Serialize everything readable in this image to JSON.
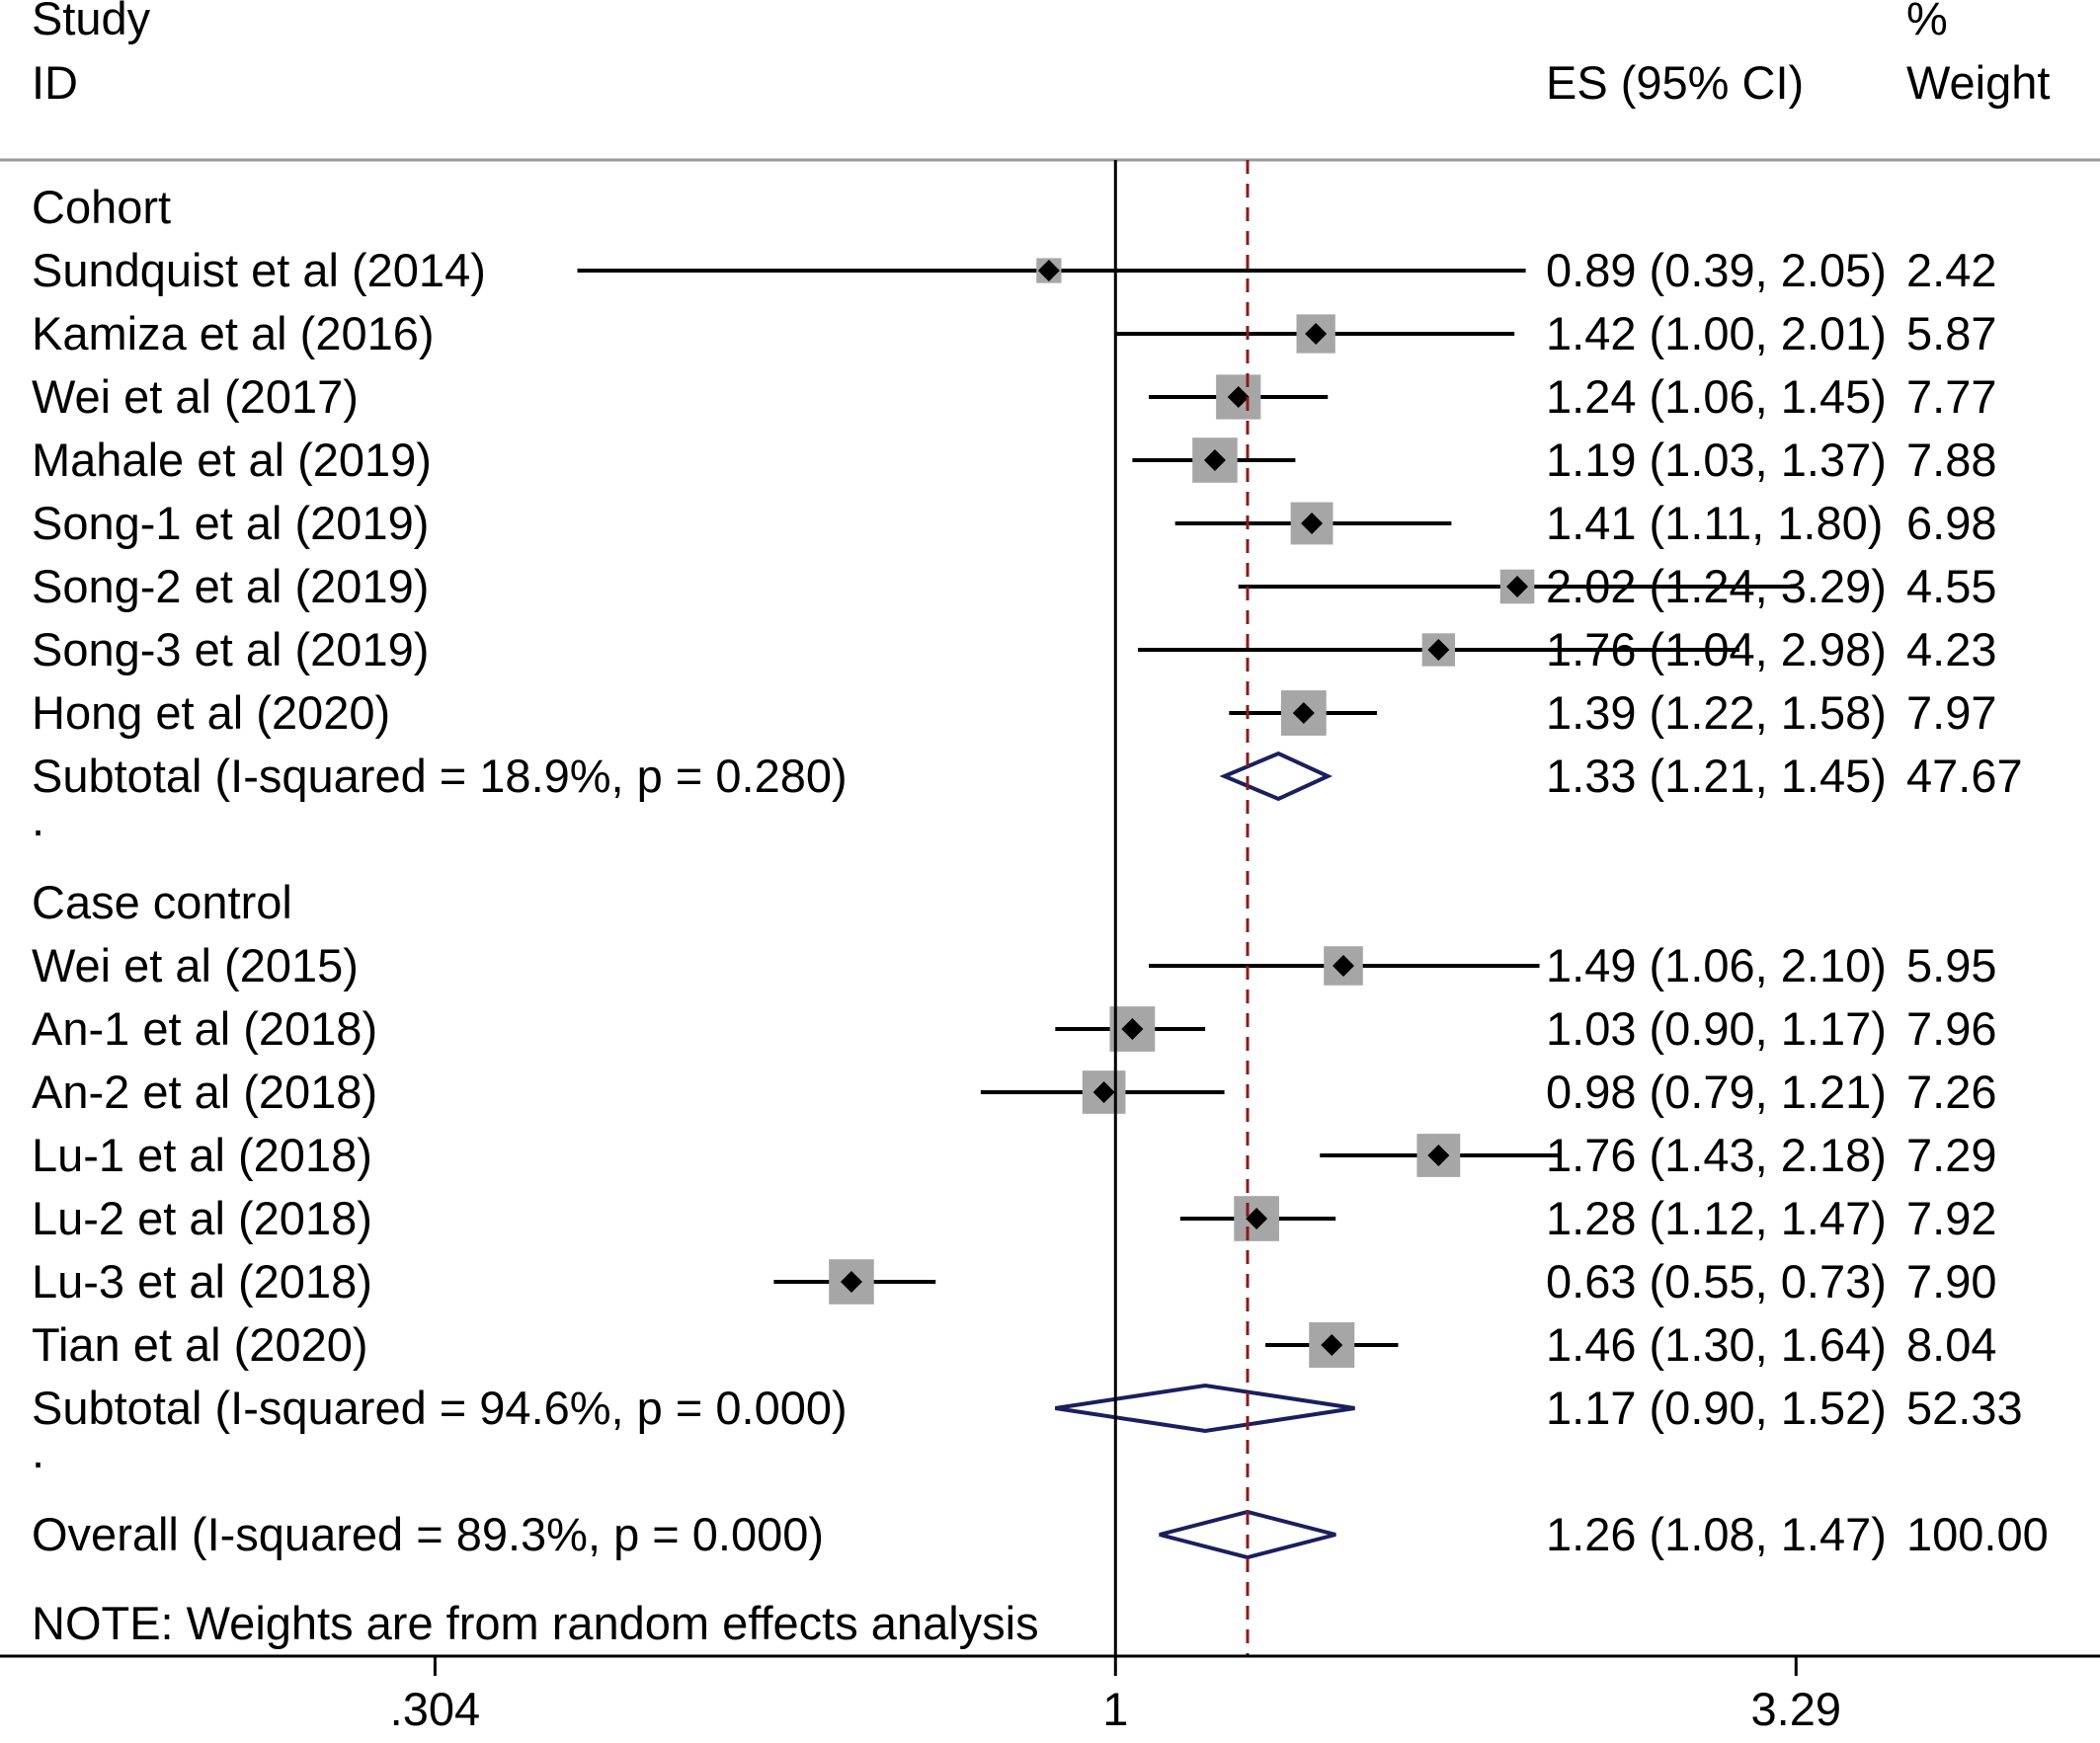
{
  "chart_data": {
    "type": "forest",
    "scale": "log",
    "header": {
      "study_line1": "Study",
      "study_line2": "ID",
      "es_label": "ES (95% CI)",
      "weight_line1": "%",
      "weight_line2": "Weight"
    },
    "null_value": 1,
    "overall_es": 1.26,
    "x_ticks": [
      {
        "value": 0.304,
        "label": ".304"
      },
      {
        "value": 1,
        "label": "1"
      },
      {
        "value": 3.29,
        "label": "3.29"
      }
    ],
    "xlim": [
      0.142,
      5.6
    ],
    "rows": [
      {
        "kind": "group",
        "label": "Cohort"
      },
      {
        "kind": "study",
        "label": "Sundquist et al (2014)",
        "es": 0.89,
        "lo": 0.39,
        "hi": 2.05,
        "weight": 2.42,
        "text": "0.89 (0.39, 2.05)",
        "weight_text": "2.42"
      },
      {
        "kind": "study",
        "label": "Kamiza et al (2016)",
        "es": 1.42,
        "lo": 1.0,
        "hi": 2.01,
        "weight": 5.87,
        "text": "1.42 (1.00, 2.01)",
        "weight_text": "5.87"
      },
      {
        "kind": "study",
        "label": "Wei et al (2017)",
        "es": 1.24,
        "lo": 1.06,
        "hi": 1.45,
        "weight": 7.77,
        "text": "1.24 (1.06, 1.45)",
        "weight_text": "7.77"
      },
      {
        "kind": "study",
        "label": "Mahale et al (2019)",
        "es": 1.19,
        "lo": 1.03,
        "hi": 1.37,
        "weight": 7.88,
        "text": "1.19 (1.03, 1.37)",
        "weight_text": "7.88"
      },
      {
        "kind": "study",
        "label": "Song-1 et al (2019)",
        "es": 1.41,
        "lo": 1.11,
        "hi": 1.8,
        "weight": 6.98,
        "text": "1.41 (1.11, 1.80)",
        "weight_text": "6.98"
      },
      {
        "kind": "study",
        "label": "Song-2 et al (2019)",
        "es": 2.02,
        "lo": 1.24,
        "hi": 3.29,
        "weight": 4.55,
        "text": "2.02 (1.24, 3.29)",
        "weight_text": "4.55"
      },
      {
        "kind": "study",
        "label": "Song-3 et al (2019)",
        "es": 1.76,
        "lo": 1.04,
        "hi": 2.98,
        "weight": 4.23,
        "text": "1.76 (1.04, 2.98)",
        "weight_text": "4.23"
      },
      {
        "kind": "study",
        "label": "Hong et al (2020)",
        "es": 1.39,
        "lo": 1.22,
        "hi": 1.58,
        "weight": 7.97,
        "text": "1.39 (1.22, 1.58)",
        "weight_text": "7.97"
      },
      {
        "kind": "subtotal",
        "label": "Subtotal  (I-squared = 18.9%, p = 0.280)",
        "es": 1.33,
        "lo": 1.21,
        "hi": 1.45,
        "text": "1.33 (1.21, 1.45)",
        "weight_text": "47.67"
      },
      {
        "kind": "spacer",
        "label": "."
      },
      {
        "kind": "group",
        "label": "Case control"
      },
      {
        "kind": "study",
        "label": "Wei et al (2015)",
        "es": 1.49,
        "lo": 1.06,
        "hi": 2.1,
        "weight": 5.95,
        "text": "1.49 (1.06, 2.10)",
        "weight_text": "5.95"
      },
      {
        "kind": "study",
        "label": "An-1 et al (2018)",
        "es": 1.03,
        "lo": 0.9,
        "hi": 1.17,
        "weight": 7.96,
        "text": "1.03 (0.90, 1.17)",
        "weight_text": "7.96"
      },
      {
        "kind": "study",
        "label": "An-2 et al (2018)",
        "es": 0.98,
        "lo": 0.79,
        "hi": 1.21,
        "weight": 7.26,
        "text": "0.98 (0.79, 1.21)",
        "weight_text": "7.26"
      },
      {
        "kind": "study",
        "label": "Lu-1 et al (2018)",
        "es": 1.76,
        "lo": 1.43,
        "hi": 2.18,
        "weight": 7.29,
        "text": "1.76 (1.43, 2.18)",
        "weight_text": "7.29"
      },
      {
        "kind": "study",
        "label": "Lu-2 et al (2018)",
        "es": 1.28,
        "lo": 1.12,
        "hi": 1.47,
        "weight": 7.92,
        "text": "1.28 (1.12, 1.47)",
        "weight_text": "7.92"
      },
      {
        "kind": "study",
        "label": "Lu-3 et al (2018)",
        "es": 0.63,
        "lo": 0.55,
        "hi": 0.73,
        "weight": 7.9,
        "text": "0.63 (0.55, 0.73)",
        "weight_text": "7.90"
      },
      {
        "kind": "study",
        "label": "Tian et al (2020)",
        "es": 1.46,
        "lo": 1.3,
        "hi": 1.64,
        "weight": 8.04,
        "text": "1.46 (1.30, 1.64)",
        "weight_text": "8.04"
      },
      {
        "kind": "subtotal",
        "label": "Subtotal  (I-squared = 94.6%, p = 0.000)",
        "es": 1.17,
        "lo": 0.9,
        "hi": 1.52,
        "text": "1.17 (0.90, 1.52)",
        "weight_text": "52.33"
      },
      {
        "kind": "spacer",
        "label": "."
      },
      {
        "kind": "overall",
        "label": "Overall  (I-squared = 89.3%, p = 0.000)",
        "es": 1.26,
        "lo": 1.08,
        "hi": 1.47,
        "text": "1.26 (1.08, 1.47)",
        "weight_text": "100.00"
      }
    ],
    "note": "NOTE: Weights are from random effects analysis",
    "colors": {
      "text": "#000000",
      "ci_line": "#000000",
      "weight_box": "#a6a6a6",
      "point": "#000000",
      "diamond": "#1a1f5e",
      "overall_line": "#8b1a1a",
      "axis": "#000000",
      "separator": "#9a9a9a"
    }
  }
}
